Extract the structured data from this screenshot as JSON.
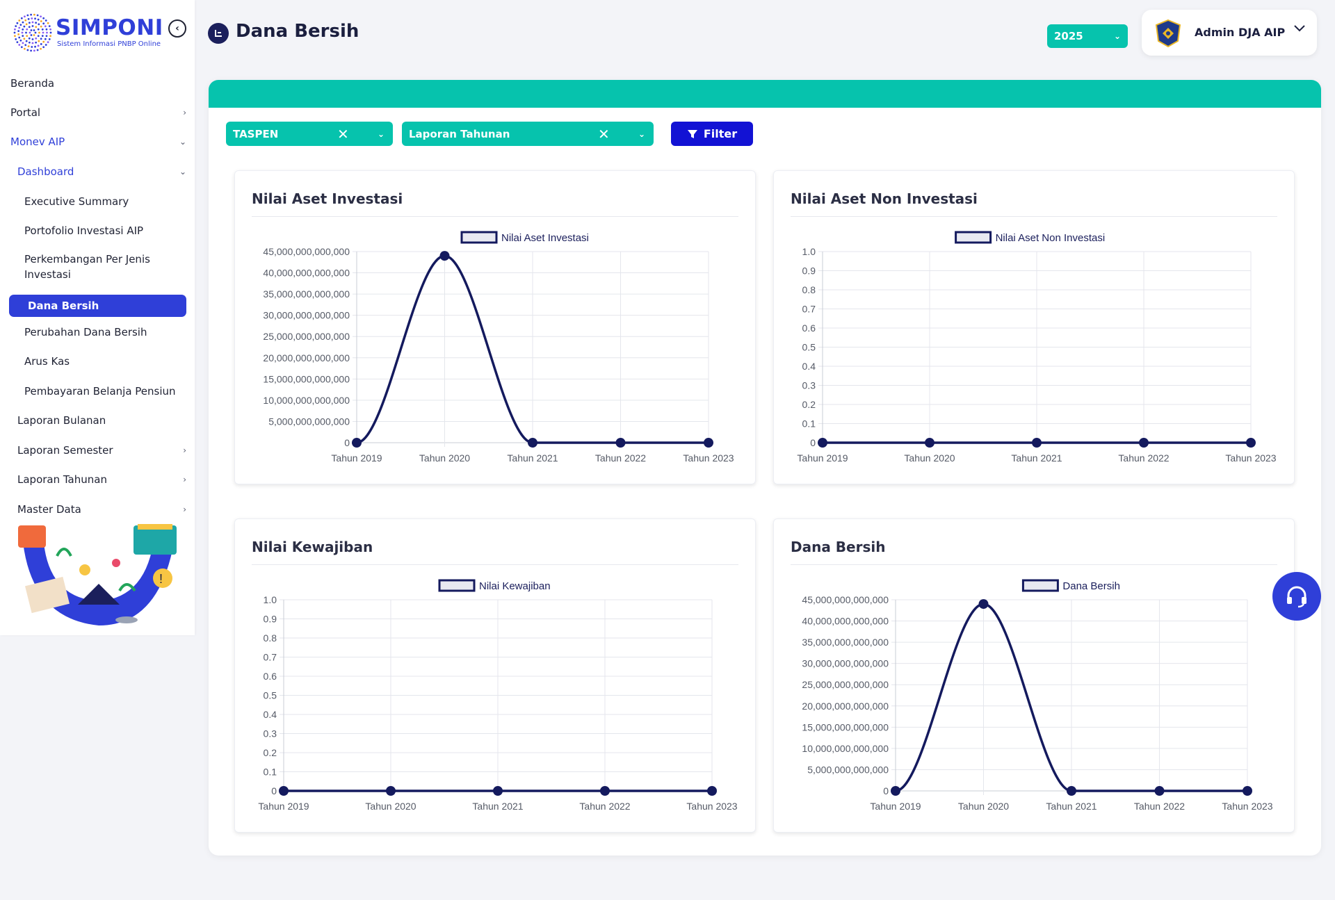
{
  "app": {
    "name": "SIMPONI",
    "subtitle": "Sistem Informasi PNBP Online"
  },
  "sidebar": {
    "items": [
      {
        "label": "Beranda",
        "chevron": "",
        "indent": 15,
        "style": "",
        "y": 0
      },
      {
        "label": "Portal",
        "chevron": "›",
        "indent": 15,
        "style": "",
        "y": 0
      },
      {
        "label": "Monev AIP",
        "chevron": "⌄",
        "indent": 15,
        "style": "blue",
        "y": 0
      },
      {
        "label": "Dashboard",
        "chevron": "⌄",
        "indent": 25,
        "style": "blue",
        "y": 0
      },
      {
        "label": "Executive Summary",
        "chevron": "",
        "indent": 35,
        "style": "",
        "y": 0
      },
      {
        "label": "Portofolio Investasi AIP",
        "chevron": "",
        "indent": 35,
        "style": "",
        "y": 0
      },
      {
        "label": "Perkembangan Per Jenis Investasi",
        "chevron": "",
        "indent": 35,
        "style": "",
        "y": 0
      },
      {
        "label": "Dana Bersih",
        "chevron": "",
        "indent": 40,
        "style": "active",
        "y": 0
      },
      {
        "label": "Perubahan Dana Bersih",
        "chevron": "",
        "indent": 35,
        "style": "",
        "y": 0
      },
      {
        "label": "Arus Kas",
        "chevron": "",
        "indent": 35,
        "style": "",
        "y": 0
      },
      {
        "label": "Pembayaran Belanja Pensiun",
        "chevron": "",
        "indent": 35,
        "style": "",
        "y": 0
      },
      {
        "label": "Laporan Bulanan",
        "chevron": "",
        "indent": 25,
        "style": "",
        "y": 0
      },
      {
        "label": "Laporan Semester",
        "chevron": "›",
        "indent": 25,
        "style": "",
        "y": 0
      },
      {
        "label": "Laporan Tahunan",
        "chevron": "›",
        "indent": 25,
        "style": "",
        "y": 0
      },
      {
        "label": "Master Data",
        "chevron": "›",
        "indent": 25,
        "style": "",
        "y": 0
      }
    ]
  },
  "header": {
    "page_title": "Dana Bersih",
    "year": "2025",
    "user_name": "Admin DJA AIP"
  },
  "filters": {
    "entity": "TASPEN",
    "report_type": "Laporan Tahunan",
    "filter_label": "Filter"
  },
  "colors": {
    "primary": "#2f3fd8",
    "teal": "#06c3ad",
    "line": "#141a5e",
    "filter_button": "#1212d4"
  },
  "chart_data": [
    {
      "type": "line",
      "title": "Nilai Aset Investasi",
      "legend": "Nilai Aset Investasi",
      "categories": [
        "Tahun 2019",
        "Tahun 2020",
        "Tahun 2021",
        "Tahun 2022",
        "Tahun 2023"
      ],
      "values": [
        0,
        44000000000000,
        0,
        0,
        0
      ],
      "ylim": [
        0,
        45000000000000
      ],
      "yticks": [
        "45,000,000,000,000",
        "40,000,000,000,000",
        "35,000,000,000,000",
        "30,000,000,000,000",
        "25,000,000,000,000",
        "20,000,000,000,000",
        "15,000,000,000,000",
        "10,000,000,000,000",
        "5,000,000,000,000",
        "0"
      ]
    },
    {
      "type": "line",
      "title": "Nilai Aset Non Investasi",
      "legend": "Nilai Aset Non Investasi",
      "categories": [
        "Tahun 2019",
        "Tahun 2020",
        "Tahun 2021",
        "Tahun 2022",
        "Tahun 2023"
      ],
      "values": [
        0,
        0,
        0,
        0,
        0
      ],
      "ylim": [
        0,
        1
      ],
      "yticks": [
        "1.0",
        "0.9",
        "0.8",
        "0.7",
        "0.6",
        "0.5",
        "0.4",
        "0.3",
        "0.2",
        "0.1",
        "0"
      ]
    },
    {
      "type": "line",
      "title": "Nilai Kewajiban",
      "legend": "Nilai Kewajiban",
      "categories": [
        "Tahun 2019",
        "Tahun 2020",
        "Tahun 2021",
        "Tahun 2022",
        "Tahun 2023"
      ],
      "values": [
        0,
        0,
        0,
        0,
        0
      ],
      "ylim": [
        0,
        1
      ],
      "yticks": [
        "1.0",
        "0.9",
        "0.8",
        "0.7",
        "0.6",
        "0.5",
        "0.4",
        "0.3",
        "0.2",
        "0.1",
        "0"
      ]
    },
    {
      "type": "line",
      "title": "Dana Bersih",
      "legend": "Dana Bersih",
      "categories": [
        "Tahun 2019",
        "Tahun 2020",
        "Tahun 2021",
        "Tahun 2022",
        "Tahun 2023"
      ],
      "values": [
        0,
        44000000000000,
        0,
        0,
        0
      ],
      "ylim": [
        0,
        45000000000000
      ],
      "yticks": [
        "45,000,000,000,000",
        "40,000,000,000,000",
        "35,000,000,000,000",
        "30,000,000,000,000",
        "25,000,000,000,000",
        "20,000,000,000,000",
        "15,000,000,000,000",
        "10,000,000,000,000",
        "5,000,000,000,000",
        "0"
      ]
    }
  ]
}
